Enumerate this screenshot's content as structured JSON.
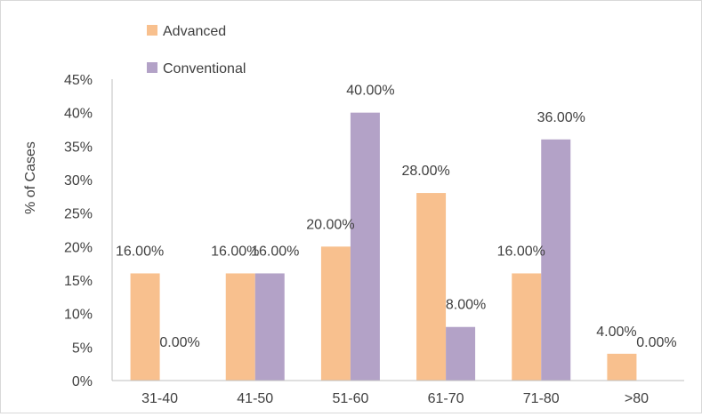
{
  "chart_data": {
    "type": "bar",
    "title": "",
    "xlabel": "",
    "ylabel": "% of Cases",
    "ylim": [
      0,
      45
    ],
    "yticks": [
      "0%",
      "5%",
      "10%",
      "15%",
      "20%",
      "25%",
      "30%",
      "35%",
      "40%",
      "45%"
    ],
    "grid": false,
    "legend_position": "top-left",
    "categories": [
      "31-40",
      "41-50",
      "51-60",
      "61-70",
      "71-80",
      ">80"
    ],
    "series": [
      {
        "name": "Advanced",
        "color": "#f8c08e",
        "values": [
          16,
          16,
          20,
          28,
          16,
          4
        ],
        "labels": [
          "16.00%",
          "16.00%",
          "20.00%",
          "28.00%",
          "16.00%",
          "4.00%"
        ]
      },
      {
        "name": "Conventional",
        "color": "#b3a2c7",
        "values": [
          0,
          16,
          40,
          8,
          36,
          0
        ],
        "labels": [
          "0.00%",
          "16.00%",
          "40.00%",
          "8.00%",
          "36.00%",
          "0.00%"
        ]
      }
    ]
  }
}
